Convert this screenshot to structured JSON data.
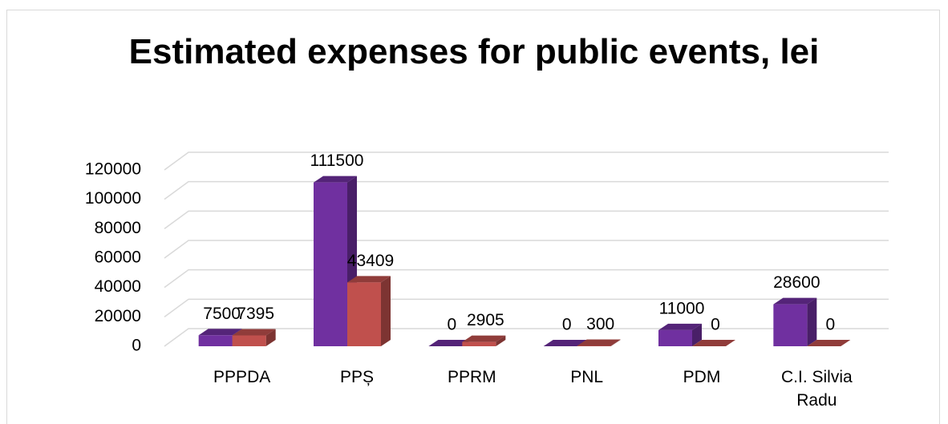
{
  "chart_data": {
    "type": "bar3d",
    "title": "Estimated expenses for public events, lei",
    "categories": [
      "PPPDA",
      "PPȘ",
      "PPRM",
      "PNL",
      "PDM",
      "C.I. Silvia Radu"
    ],
    "series": [
      {
        "color": "#7030a0",
        "values": [
          7500,
          111500,
          0,
          0,
          11000,
          28600
        ]
      },
      {
        "color": "#c0504d",
        "values": [
          7395,
          43409,
          2905,
          300,
          0,
          0
        ]
      }
    ],
    "ylim": [
      0,
      120000
    ],
    "yticks": [
      0,
      20000,
      40000,
      60000,
      80000,
      100000,
      120000
    ],
    "grid": true
  }
}
